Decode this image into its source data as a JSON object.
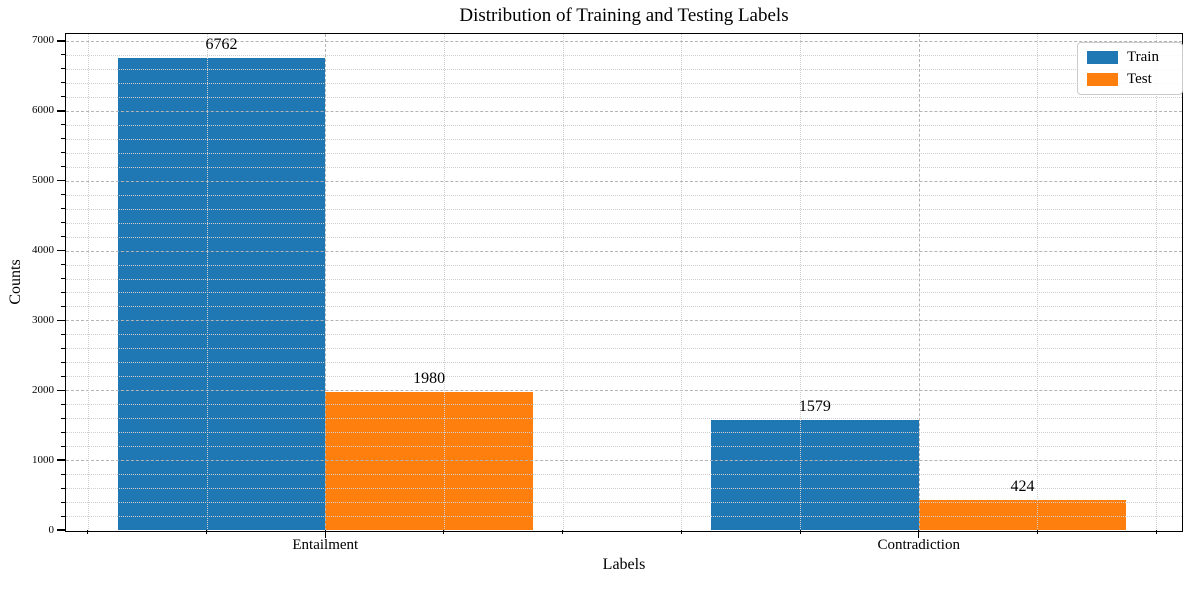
{
  "chart_data": {
    "type": "bar",
    "title": "Distribution of Training and Testing Labels",
    "xlabel": "Labels",
    "ylabel": "Counts",
    "categories": [
      "Entailment",
      "Contradiction"
    ],
    "series": [
      {
        "name": "Train",
        "color": "#1f77b4",
        "values": [
          6762,
          1579
        ]
      },
      {
        "name": "Test",
        "color": "#ff7f0e",
        "values": [
          1980,
          424
        ]
      }
    ],
    "bar_width": 0.35,
    "ylim": [
      0,
      7100
    ],
    "yticks": [
      0,
      1000,
      2000,
      3000,
      4000,
      5000,
      6000,
      7000
    ],
    "ytick_minor_step": 200,
    "xlim": [
      -0.437,
      1.442
    ],
    "xtick_minor_step": 0.2,
    "grid": {
      "major_style": "dashed",
      "minor_style": "dotted",
      "major_color": "#b4b4b4",
      "minor_color": "#cfcfcf"
    },
    "legend": {
      "position": "upper right",
      "entries": [
        "Train",
        "Test"
      ]
    },
    "value_labels_shown": true
  }
}
